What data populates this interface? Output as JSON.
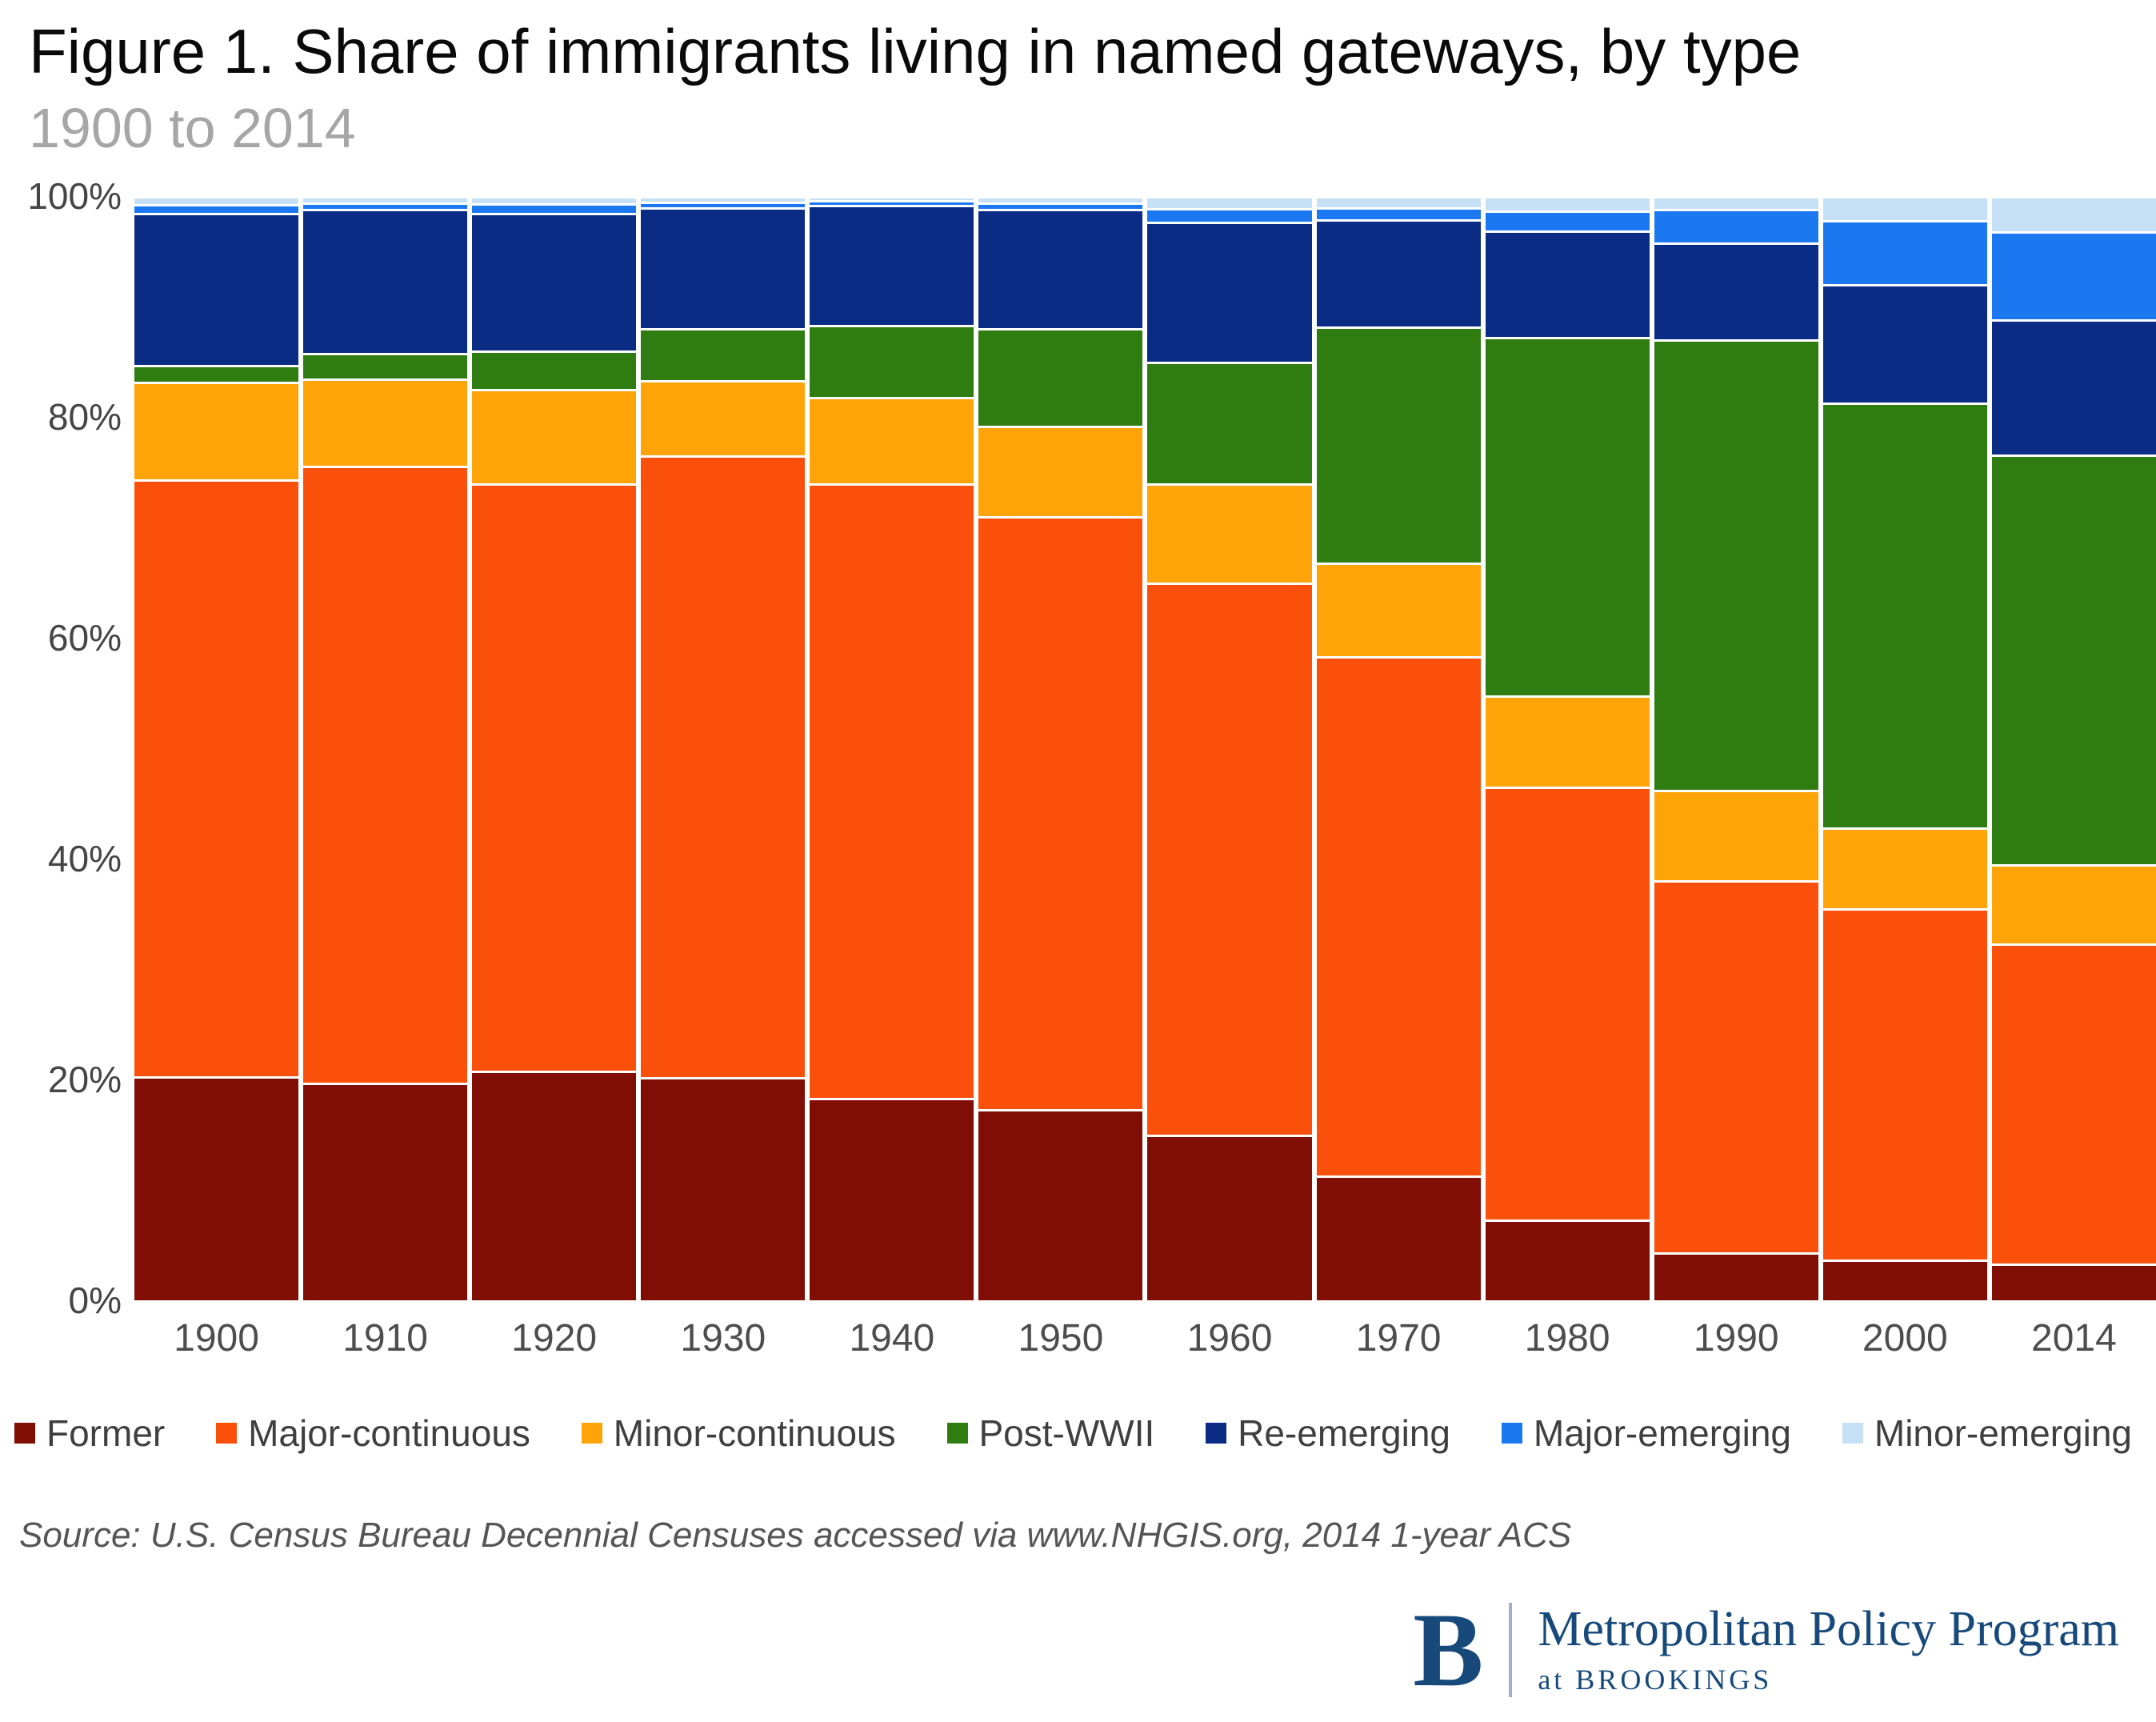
{
  "header": {
    "title": "Figure 1. Share of immigrants living in named gateways, by type",
    "subtitle": "1900 to 2014"
  },
  "chart_data": {
    "type": "bar",
    "stacked": true,
    "stack_total": 100,
    "title": "Figure 1. Share of immigrants living in named gateways, by type",
    "subtitle": "1900 to 2014",
    "xlabel": "",
    "ylabel": "",
    "ylim": [
      0,
      100
    ],
    "grid": false,
    "legend_position": "bottom",
    "y_ticks": [
      "0%",
      "20%",
      "40%",
      "60%",
      "80%",
      "100%"
    ],
    "categories": [
      "1900",
      "1910",
      "1920",
      "1930",
      "1940",
      "1950",
      "1960",
      "1970",
      "1980",
      "1990",
      "2000",
      "2014"
    ],
    "series": [
      {
        "name": "Former",
        "color": "#800e05",
        "values": [
          20.3,
          19.7,
          20.8,
          20.2,
          18.3,
          17.3,
          15.0,
          11.3,
          7.3,
          4.3,
          3.7,
          3.3
        ]
      },
      {
        "name": "Major-continuous",
        "color": "#fb4f0c",
        "values": [
          54.0,
          55.9,
          53.2,
          56.3,
          55.7,
          53.7,
          50.0,
          47.0,
          39.2,
          33.7,
          31.8,
          29.0
        ]
      },
      {
        "name": "Minor-continuous",
        "color": "#ffa408",
        "values": [
          8.9,
          7.9,
          8.5,
          6.8,
          7.8,
          8.2,
          9.0,
          8.5,
          8.3,
          8.2,
          7.3,
          7.2
        ]
      },
      {
        "name": "Post-WWII",
        "color": "#2f7c11",
        "values": [
          1.5,
          2.3,
          3.5,
          4.7,
          6.5,
          8.8,
          11.0,
          21.4,
          32.4,
          40.8,
          38.5,
          37.1
        ]
      },
      {
        "name": "Re-emerging",
        "color": "#0a2c85",
        "values": [
          13.8,
          13.0,
          12.5,
          11.0,
          10.9,
          10.8,
          12.7,
          9.7,
          9.7,
          8.8,
          10.7,
          12.2
        ]
      },
      {
        "name": "Major-emerging",
        "color": "#1c78f0",
        "values": [
          0.8,
          0.6,
          0.8,
          0.5,
          0.4,
          0.6,
          1.2,
          1.1,
          1.8,
          3.0,
          5.8,
          8.0
        ]
      },
      {
        "name": "Minor-emerging",
        "color": "#c6e1f5",
        "values": [
          0.7,
          0.6,
          0.7,
          0.5,
          0.4,
          0.6,
          1.1,
          1.0,
          1.3,
          1.2,
          2.2,
          3.2
        ]
      }
    ]
  },
  "source": "Source: U.S. Census Bureau Decennial Censuses accessed via www.NHGIS.org, 2014 1-year ACS",
  "footer": {
    "logo_letter": "B",
    "program": "Metropolitan Policy Program",
    "org": "at BROOKINGS"
  }
}
